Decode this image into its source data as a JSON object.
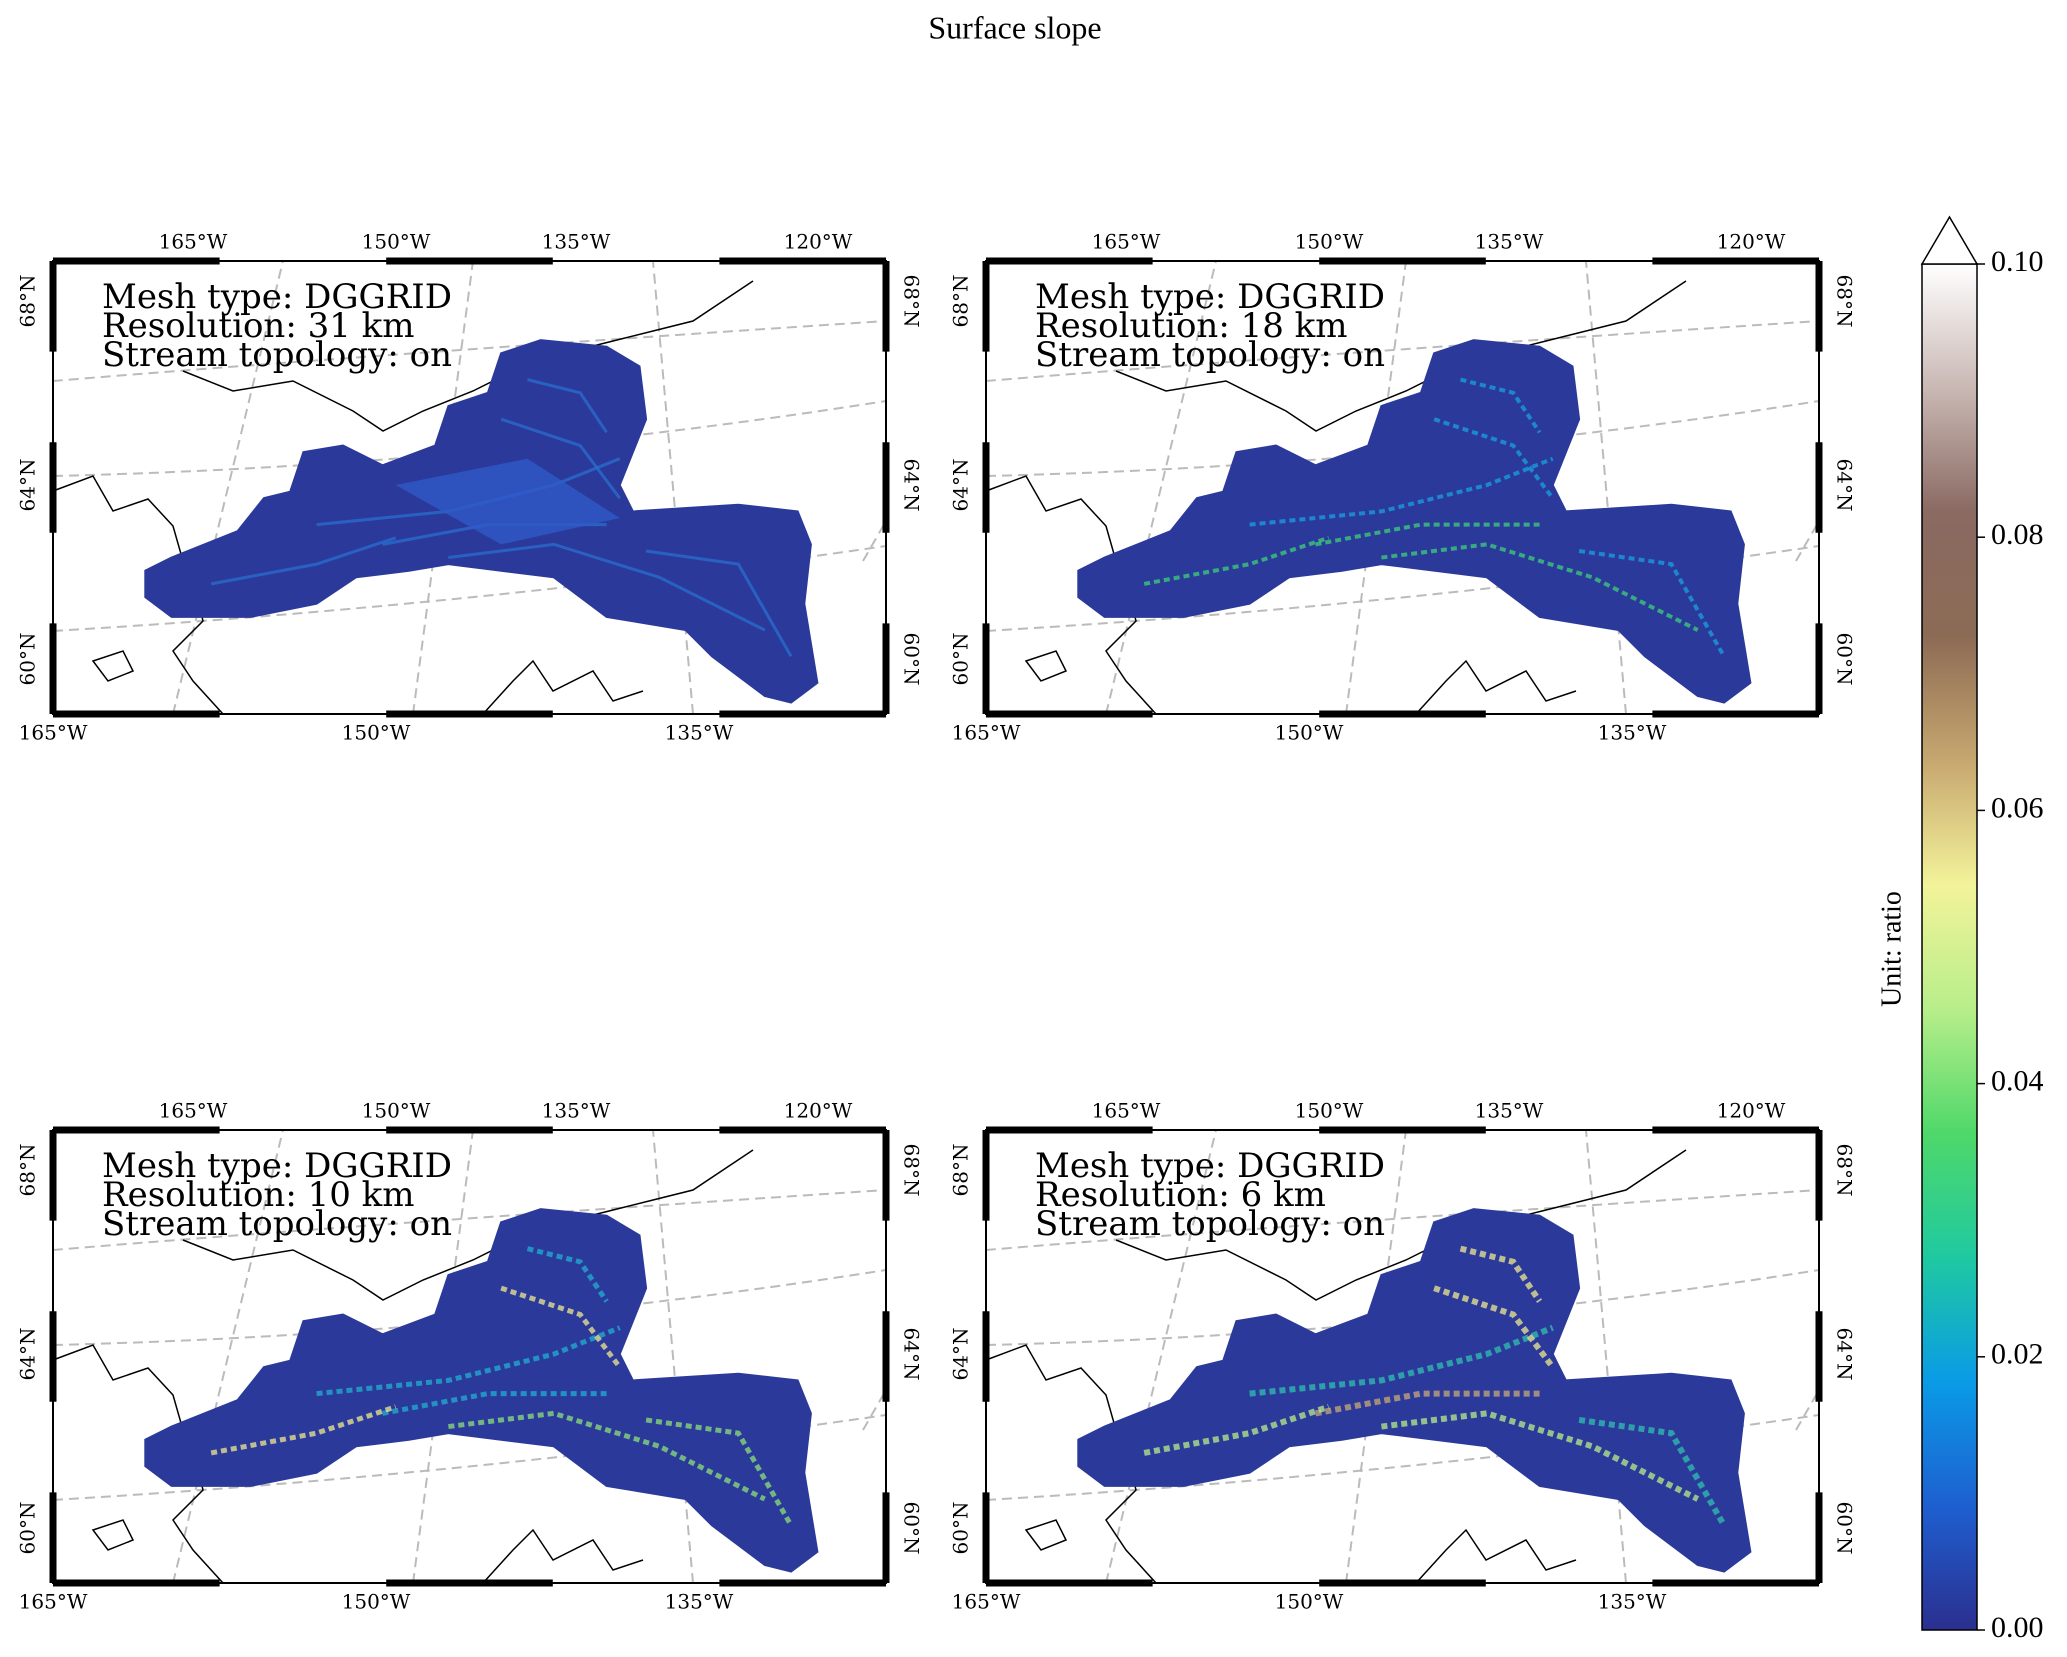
{
  "chart_data": {
    "type": "map",
    "title": "Surface slope",
    "panels": [
      {
        "annotation": [
          "Mesh type: DGGRID",
          "Resolution: 31 km",
          "Stream topology: on"
        ]
      },
      {
        "annotation": [
          "Mesh type: DGGRID",
          "Resolution: 18 km",
          "Stream topology: on"
        ]
      },
      {
        "annotation": [
          "Mesh type: DGGRID",
          "Resolution: 10 km",
          "Stream topology: on"
        ]
      },
      {
        "annotation": [
          "Mesh type: DGGRID",
          "Resolution: 6 km",
          "Stream topology: on"
        ]
      }
    ],
    "lon_labels_top": [
      "165°W",
      "150°W",
      "135°W",
      "120°W"
    ],
    "lon_labels_bottom": [
      "165°W",
      "150°W",
      "135°W"
    ],
    "lat_labels": [
      "68°N",
      "64°N",
      "60°N"
    ],
    "colorbar": {
      "label": "Unit: ratio",
      "lim": [
        0,
        0.1
      ],
      "ticks": [
        {
          "value": 0,
          "label": "0.00"
        },
        {
          "value": 0.02,
          "label": "0.02"
        },
        {
          "value": 0.04,
          "label": "0.04"
        },
        {
          "value": 0.06,
          "label": "0.06"
        },
        {
          "value": 0.08,
          "label": "0.08"
        },
        {
          "value": 0.1,
          "label": "0.10"
        }
      ],
      "colormap": [
        "#2b2f8f",
        "#1e5fd0",
        "#0a9be6",
        "#1fc9a0",
        "#4fd86a",
        "#b8ee8a",
        "#f3f39a",
        "#c7a76f",
        "#8c6b55",
        "#8a6a62",
        "#c9b8b4",
        "#ffffff"
      ]
    }
  }
}
